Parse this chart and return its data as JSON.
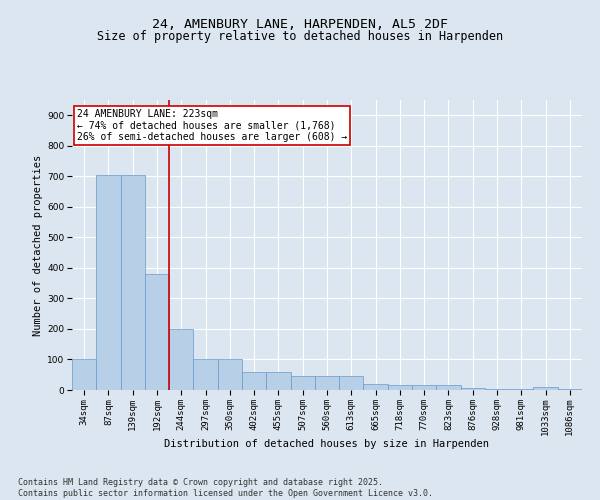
{
  "title1": "24, AMENBURY LANE, HARPENDEN, AL5 2DF",
  "title2": "Size of property relative to detached houses in Harpenden",
  "xlabel": "Distribution of detached houses by size in Harpenden",
  "ylabel": "Number of detached properties",
  "categories": [
    "34sqm",
    "87sqm",
    "139sqm",
    "192sqm",
    "244sqm",
    "297sqm",
    "350sqm",
    "402sqm",
    "455sqm",
    "507sqm",
    "560sqm",
    "613sqm",
    "665sqm",
    "718sqm",
    "770sqm",
    "823sqm",
    "876sqm",
    "928sqm",
    "981sqm",
    "1033sqm",
    "1086sqm"
  ],
  "values": [
    100,
    703,
    703,
    380,
    200,
    100,
    100,
    60,
    60,
    45,
    45,
    45,
    20,
    15,
    15,
    15,
    5,
    2,
    2,
    10,
    2
  ],
  "bar_color": "#b8cfe8",
  "bar_edge_color": "#6699cc",
  "vline_x": 3.5,
  "vline_color": "#cc0000",
  "annotation_text": "24 AMENBURY LANE: 223sqm\n← 74% of detached houses are smaller (1,768)\n26% of semi-detached houses are larger (608) →",
  "annotation_box_color": "#cc0000",
  "ylim": [
    0,
    950
  ],
  "yticks": [
    0,
    100,
    200,
    300,
    400,
    500,
    600,
    700,
    800,
    900
  ],
  "footnote": "Contains HM Land Registry data © Crown copyright and database right 2025.\nContains public sector information licensed under the Open Government Licence v3.0.",
  "bg_color": "#dce6f0",
  "plot_bg_color": "#dce6f0",
  "grid_color": "#ffffff",
  "title_fontsize": 9.5,
  "subtitle_fontsize": 8.5,
  "axis_fontsize": 7.5,
  "tick_fontsize": 6.5,
  "annotation_fontsize": 7,
  "footnote_fontsize": 6
}
